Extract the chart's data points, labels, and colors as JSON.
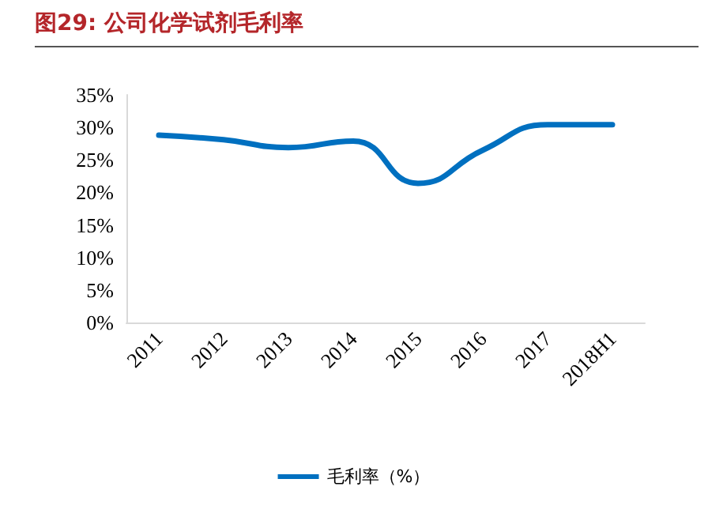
{
  "chart_data": {
    "type": "line",
    "title": "图29:    公司化学试剂毛利率",
    "categories": [
      "2011",
      "2012",
      "2013",
      "2014",
      "2015",
      "2016",
      "2017",
      "2018H1"
    ],
    "series": [
      {
        "name": "毛利率（%）",
        "color": "#0070c0",
        "values": [
          28.8,
          28.1,
          26.9,
          27.9,
          21.4,
          26.5,
          30.4,
          30.4
        ]
      }
    ],
    "ylim": [
      0,
      35
    ],
    "yticks": [
      {
        "value": 0,
        "label": "0%"
      },
      {
        "value": 5,
        "label": "5%"
      },
      {
        "value": 10,
        "label": "10%"
      },
      {
        "value": 15,
        "label": "15%"
      },
      {
        "value": 20,
        "label": "20%"
      },
      {
        "value": 25,
        "label": "25%"
      },
      {
        "value": 30,
        "label": "30%"
      },
      {
        "value": 35,
        "label": "35%"
      }
    ],
    "grid": false,
    "legend": "bottom",
    "marker": "none",
    "line_style": "solid"
  }
}
